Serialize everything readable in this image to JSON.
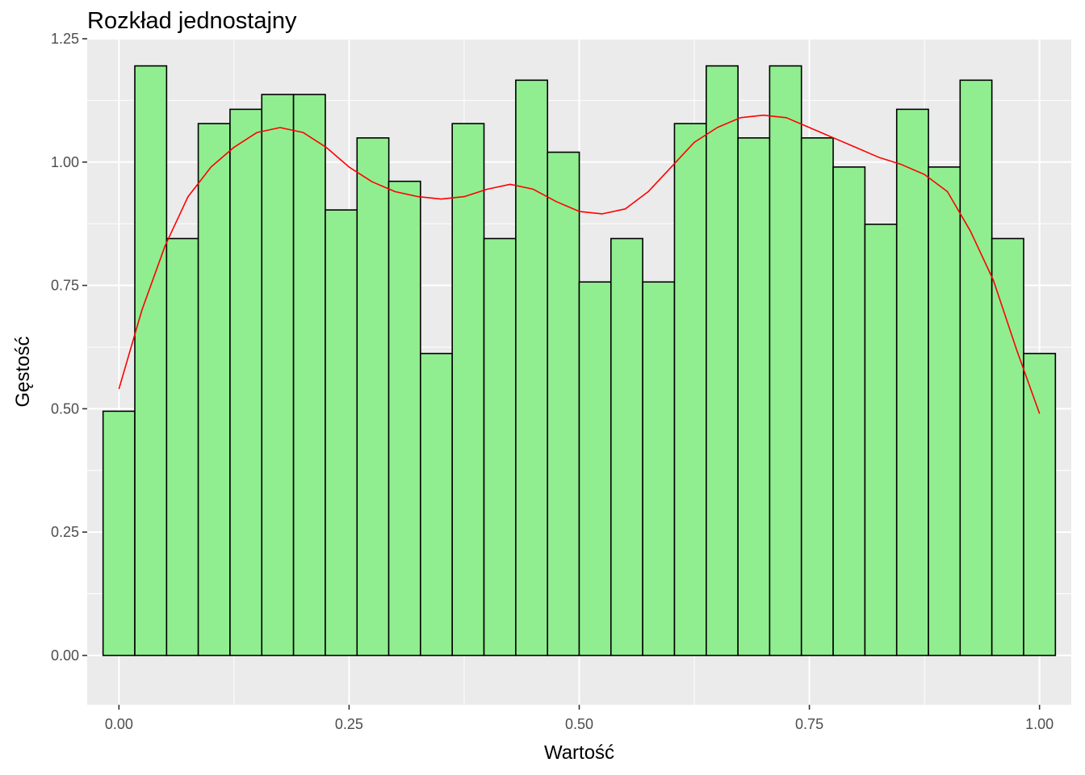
{
  "chart_data": {
    "type": "bar",
    "title": "Rozkład jednostajny",
    "xlabel": "Wartość",
    "ylabel": "Gęstość",
    "xlim": [
      -0.0345,
      1.0345
    ],
    "ylim": [
      -0.1,
      1.25
    ],
    "x_ticks": [
      "0.00",
      "0.25",
      "0.50",
      "0.75",
      "1.00"
    ],
    "y_ticks": [
      "0.00",
      "0.25",
      "0.50",
      "0.75",
      "1.00",
      "1.25"
    ],
    "grid": true,
    "bar_fill": "#90ee90",
    "bar_outline": "#000000",
    "panel_background": "#ebebeb",
    "bin_width": 0.0345,
    "bin_centers": [
      0.0,
      0.0345,
      0.069,
      0.1034,
      0.1379,
      0.1724,
      0.2069,
      0.2414,
      0.2759,
      0.3103,
      0.3448,
      0.3793,
      0.4138,
      0.4483,
      0.4828,
      0.5172,
      0.5517,
      0.5862,
      0.6207,
      0.6552,
      0.6897,
      0.7241,
      0.7586,
      0.7931,
      0.8276,
      0.8621,
      0.8966,
      0.931,
      0.9655,
      1.0
    ],
    "values": [
      0.495,
      1.195,
      0.845,
      1.078,
      1.107,
      1.137,
      1.137,
      0.903,
      1.049,
      0.961,
      0.612,
      1.078,
      0.845,
      1.166,
      1.02,
      0.757,
      0.845,
      0.757,
      1.078,
      1.195,
      1.049,
      1.195,
      1.049,
      0.99,
      0.874,
      1.107,
      0.99,
      1.166,
      0.845,
      0.612
    ],
    "density_curve": {
      "color": "#ff0000",
      "x": [
        0.0,
        0.025,
        0.05,
        0.075,
        0.1,
        0.125,
        0.15,
        0.175,
        0.2,
        0.225,
        0.25,
        0.275,
        0.3,
        0.325,
        0.35,
        0.375,
        0.4,
        0.425,
        0.45,
        0.475,
        0.5,
        0.525,
        0.55,
        0.575,
        0.6,
        0.625,
        0.65,
        0.675,
        0.7,
        0.725,
        0.75,
        0.775,
        0.8,
        0.825,
        0.85,
        0.875,
        0.9,
        0.925,
        0.95,
        0.975,
        1.0
      ],
      "y": [
        0.54,
        0.7,
        0.83,
        0.93,
        0.99,
        1.03,
        1.06,
        1.07,
        1.06,
        1.03,
        0.99,
        0.96,
        0.94,
        0.93,
        0.925,
        0.93,
        0.945,
        0.955,
        0.945,
        0.92,
        0.9,
        0.895,
        0.905,
        0.94,
        0.99,
        1.04,
        1.07,
        1.09,
        1.095,
        1.09,
        1.07,
        1.05,
        1.03,
        1.01,
        0.995,
        0.975,
        0.94,
        0.86,
        0.76,
        0.62,
        0.49
      ]
    }
  }
}
